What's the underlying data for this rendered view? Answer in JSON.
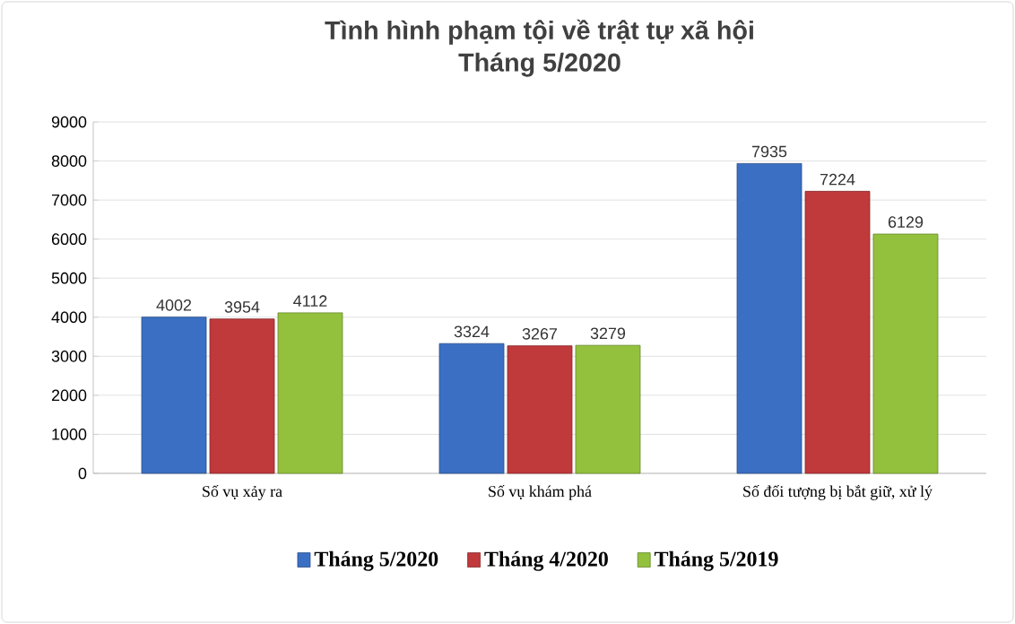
{
  "chart_data": {
    "type": "bar",
    "title": "Tình hình phạm tội về trật tự xã hội",
    "subtitle": "Tháng 5/2020",
    "categories": [
      "Số vụ xảy ra",
      "Số vụ khám phá",
      "Số đối tượng bị bắt giữ, xử lý"
    ],
    "series": [
      {
        "name": "Tháng 5/2020",
        "color": "#3b6fc3",
        "values": [
          4002,
          3324,
          7935
        ]
      },
      {
        "name": "Tháng 4/2020",
        "color": "#c0393b",
        "values": [
          3954,
          3267,
          7224
        ]
      },
      {
        "name": "Tháng 5/2019",
        "color": "#93c13d",
        "values": [
          4112,
          3279,
          6129
        ]
      }
    ],
    "ylim": [
      0,
      9000
    ],
    "yticks": [
      0,
      1000,
      2000,
      3000,
      4000,
      5000,
      6000,
      7000,
      8000,
      9000
    ],
    "grid": "y",
    "legend": "bottom",
    "data_labels": true
  }
}
